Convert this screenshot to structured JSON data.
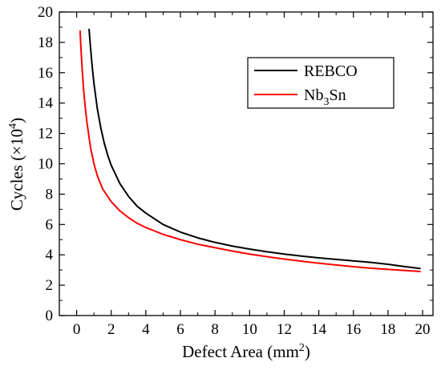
{
  "chart_data": {
    "type": "line",
    "xlabel": {
      "prefix": "Defect Area (mm",
      "sup": "2",
      "suffix": ")"
    },
    "ylabel": {
      "prefix": "Cycles (×10",
      "sup": "4",
      "suffix": ")"
    },
    "xlim": [
      -1,
      20.6
    ],
    "ylim": [
      0,
      20
    ],
    "x_ticks": [
      0,
      2,
      4,
      6,
      8,
      10,
      12,
      14,
      16,
      18,
      20
    ],
    "y_ticks": [
      0,
      2,
      4,
      6,
      8,
      10,
      12,
      14,
      16,
      18,
      20
    ],
    "grid": false,
    "legend_position": "top-right",
    "series": [
      {
        "name": "REBCO",
        "name_parts": {
          "text": "REBCO"
        },
        "color": "#000000",
        "points": [
          [
            0.72,
            18.85
          ],
          [
            0.8,
            17.7
          ],
          [
            0.9,
            16.4
          ],
          [
            1.0,
            15.3
          ],
          [
            1.2,
            13.6
          ],
          [
            1.4,
            12.35
          ],
          [
            1.6,
            11.35
          ],
          [
            1.8,
            10.55
          ],
          [
            2.0,
            9.9
          ],
          [
            2.5,
            8.7
          ],
          [
            3.0,
            7.85
          ],
          [
            3.5,
            7.2
          ],
          [
            4.0,
            6.75
          ],
          [
            5.0,
            6.0
          ],
          [
            6.0,
            5.5
          ],
          [
            7.0,
            5.12
          ],
          [
            8.0,
            4.82
          ],
          [
            9.0,
            4.58
          ],
          [
            10.0,
            4.38
          ],
          [
            11.0,
            4.2
          ],
          [
            12.0,
            4.05
          ],
          [
            13.0,
            3.92
          ],
          [
            14.0,
            3.8
          ],
          [
            15.0,
            3.7
          ],
          [
            16.0,
            3.6
          ],
          [
            17.0,
            3.5
          ],
          [
            18.0,
            3.38
          ],
          [
            19.0,
            3.22
          ],
          [
            19.85,
            3.1
          ]
        ]
      },
      {
        "name": "Nb3Sn",
        "name_parts": {
          "base": "Nb",
          "sub": "3",
          "rest": "Sn"
        },
        "color": "#ff0000",
        "points": [
          [
            0.2,
            18.75
          ],
          [
            0.25,
            17.6
          ],
          [
            0.3,
            16.6
          ],
          [
            0.4,
            14.9
          ],
          [
            0.5,
            13.7
          ],
          [
            0.6,
            12.7
          ],
          [
            0.8,
            11.1
          ],
          [
            1.0,
            10.0
          ],
          [
            1.2,
            9.2
          ],
          [
            1.5,
            8.35
          ],
          [
            2.0,
            7.5
          ],
          [
            2.5,
            6.9
          ],
          [
            3.0,
            6.45
          ],
          [
            3.5,
            6.08
          ],
          [
            4.0,
            5.8
          ],
          [
            5.0,
            5.35
          ],
          [
            6.0,
            5.0
          ],
          [
            7.0,
            4.7
          ],
          [
            8.0,
            4.47
          ],
          [
            9.0,
            4.25
          ],
          [
            10.0,
            4.05
          ],
          [
            11.0,
            3.88
          ],
          [
            12.0,
            3.72
          ],
          [
            13.0,
            3.58
          ],
          [
            14.0,
            3.45
          ],
          [
            15.0,
            3.33
          ],
          [
            16.0,
            3.22
          ],
          [
            17.0,
            3.12
          ],
          [
            18.0,
            3.04
          ],
          [
            19.0,
            2.97
          ],
          [
            19.85,
            2.9
          ]
        ]
      }
    ]
  }
}
